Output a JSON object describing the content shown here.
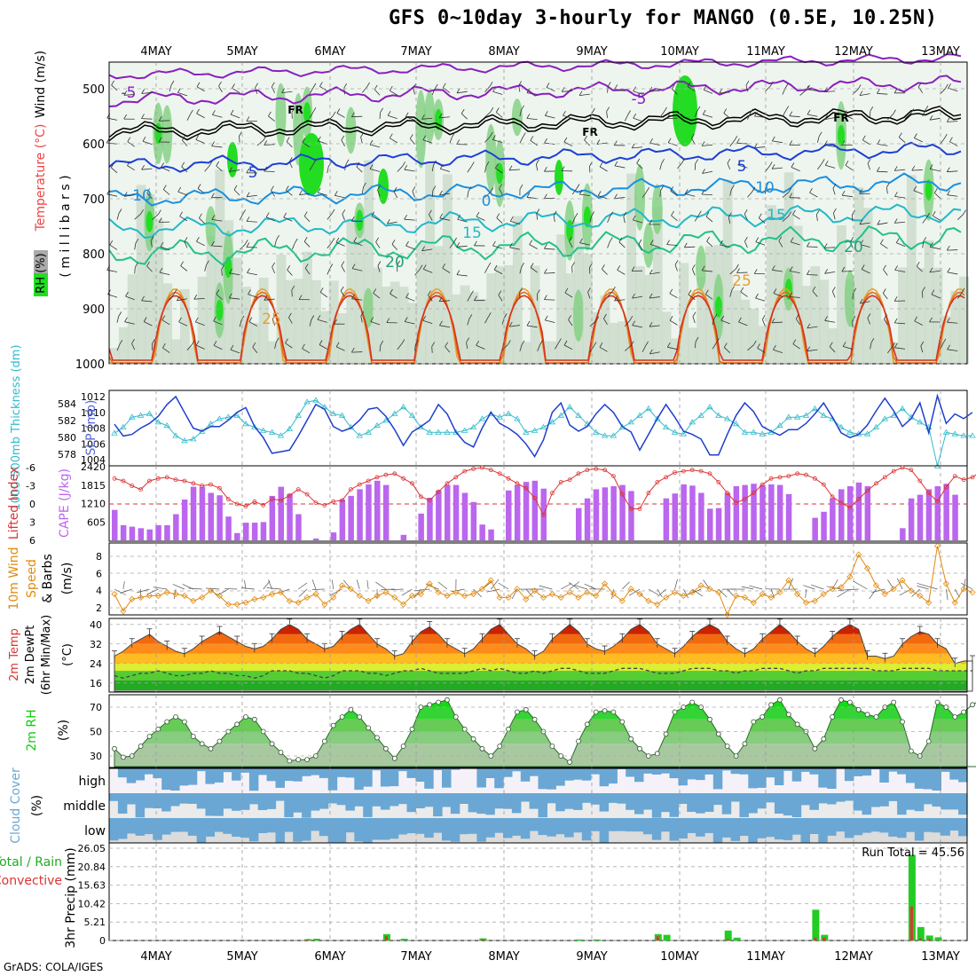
{
  "title": "GFS 0~10day 3-hourly for MANGO (0.5E, 10.25N)",
  "credit": "GrADS: COLA/IGES",
  "colors": {
    "rh_green": "#22dd22",
    "rh_light": "#c8d8c8",
    "slp": "#1f3fcc",
    "thickness": "#33bbcc",
    "cape": "#bb66ee",
    "lifted": "#dd3333",
    "wind10": "#e08a10",
    "rh2m": "#11cc11",
    "cloud": "#6aa7d4",
    "precip_total": "#22cc22",
    "precip_conv": "#dd3333"
  },
  "chart_data": [
    {
      "type": "contour",
      "panel": "upper-air",
      "ylabel_segments": [
        "RH (%)",
        "Temperature (°C)",
        "Wind (m/s)"
      ],
      "ylabel2": "( m i l l i b a r s )",
      "x_labels": [
        "4MAY",
        "5MAY",
        "6MAY",
        "7MAY",
        "8MAY",
        "9MAY",
        "10MAY",
        "11MAY",
        "12MAY",
        "13MAY"
      ],
      "y_ticks": [
        "500",
        "600",
        "700",
        "800",
        "900",
        "1000"
      ],
      "isotherm_labels": [
        "-5",
        "-5",
        "FR",
        "FR",
        "FR",
        "5",
        "5",
        "10",
        "10",
        "0",
        "15",
        "15",
        "20",
        "20",
        "25",
        "25"
      ],
      "isotherms_C": [
        -5,
        0,
        5,
        10,
        15,
        20,
        25
      ]
    },
    {
      "type": "line",
      "panel": "slp-thickness",
      "ylabel_left": "1000-500mb Thickness (dm)",
      "ylabel_right": "SLP (mb)",
      "y_ticks_left": [
        "584",
        "582",
        "580",
        "578"
      ],
      "y_ticks_right": [
        "1012",
        "1010",
        "1008",
        "1006",
        "1004"
      ],
      "series": [
        {
          "name": "SLP",
          "values": [
            1008.5,
            1007,
            1007.2,
            1008,
            1008.6,
            1009.5,
            1011,
            1012,
            1010,
            1008,
            1007.6,
            1008.2,
            1008.2,
            1009,
            1010,
            1010.6,
            1008.2,
            1006.8,
            1004.8,
            1005,
            1005.2,
            1007,
            1009,
            1011,
            1010.4,
            1008.2,
            1007.6,
            1008,
            1009,
            1010.4,
            1010.6,
            1009.5,
            1007.8,
            1005.8,
            1007.5,
            1008.2,
            1009,
            1011,
            1009.8,
            1007.5,
            1006.2,
            1005.6,
            1008,
            1010,
            1008.6,
            1008,
            1007.2,
            1006,
            1004.4,
            1006.5,
            1010,
            1011.2,
            1008.4,
            1007.6,
            1008.2,
            1009.8,
            1011,
            1010,
            1008.2,
            1007.5,
            1005.2,
            1007.2,
            1009.2,
            1011,
            1009.4,
            1007.6,
            1007.2,
            1006.6,
            1004.6,
            1004.6,
            1007.2,
            1009.6,
            1011.2,
            1010.1,
            1008.2,
            1007.6,
            1007.1,
            1007.8,
            1007.8,
            1008.6,
            1009.8,
            1011.2,
            1009.4,
            1007.4,
            1006.8,
            1007.2,
            1008.4,
            1010.2,
            1011.8,
            1010.2,
            1008.2,
            1009.2,
            1011.2,
            1007.4,
            1012.1,
            1008.6,
            1009.8,
            1009.2,
            1010
          ]
        },
        {
          "name": "Thickness",
          "values": [
            580.5,
            581.2,
            582.4,
            582.6,
            582.8,
            581.8,
            581.4,
            580.2,
            579.6,
            579.8,
            580.7,
            581.6,
            582.2,
            582.4,
            582.6,
            581.6,
            581.2,
            580.8,
            580.6,
            580.2,
            581,
            582.6,
            584.2,
            584.4,
            583.6,
            582.8,
            582.6,
            581.2,
            580.2,
            580.6,
            581.4,
            582,
            582.8,
            583.6,
            582.6,
            581.2,
            580.6,
            580.6,
            580.6,
            580.6,
            580.8,
            581.2,
            582.2,
            582.8,
            582.4,
            582.8,
            582.2,
            580.6,
            580.8,
            581.2,
            581.8,
            582.6,
            583.6,
            582.6,
            581.6,
            580.6,
            580.2,
            580.2,
            581.2,
            581.8,
            582.6,
            583.4,
            582.2,
            581.2,
            580.6,
            580.4,
            581.8,
            582.6,
            583.6,
            582.6,
            582.2,
            581.6,
            580.6,
            580.6,
            580.4,
            580.6,
            581.4,
            582.4,
            582.4,
            582.6,
            583.4,
            582.6,
            582.2,
            581.2,
            580.6,
            580.4,
            580.4,
            581.2,
            582.2,
            582.6,
            583.4,
            582.4,
            581.8,
            581.2,
            576.6,
            580.6,
            580.4,
            580.2,
            580.2
          ]
        }
      ]
    },
    {
      "type": "bar",
      "panel": "cape-lifted-index",
      "ylabel_left": "Lifted Index",
      "ylabel_right": "CAPE (J/kg)",
      "y_ticks_left": [
        "-6",
        "-3",
        "0",
        "3",
        "6"
      ],
      "y_ticks_right": [
        "2420",
        "1815",
        "1210",
        "605"
      ],
      "series": [
        {
          "name": "CAPE",
          "values": [
            1000,
            500,
            450,
            400,
            360,
            500,
            500,
            860,
            1340,
            1760,
            1760,
            1560,
            1480,
            780,
            240,
            580,
            580,
            600,
            1460,
            1760,
            1520,
            860,
            0,
            60,
            0,
            260,
            1340,
            1460,
            1680,
            1840,
            1960,
            1820,
            0,
            180,
            0,
            880,
            1400,
            1640,
            1820,
            1820,
            1560,
            1260,
            520,
            360,
            0,
            1640,
            1820,
            1920,
            1960,
            1700,
            0,
            0,
            0,
            1060,
            1380,
            1680,
            1740,
            1780,
            1820,
            1620,
            0,
            0,
            0,
            1380,
            1540,
            1840,
            1800,
            1560,
            1040,
            1060,
            1560,
            1780,
            1820,
            1860,
            1820,
            1840,
            1820,
            1520,
            0,
            0,
            740,
            940,
            1380,
            1680,
            1780,
            1900,
            1780,
            0,
            0,
            0,
            400,
            1380,
            1500,
            1680,
            1780,
            1860,
            1500,
            0,
            0,
            0,
            130,
            180
          ]
        },
        {
          "name": "Lifted Index",
          "values": [
            -4.2,
            -3.8,
            -3,
            -2.4,
            -3.8,
            -4.2,
            -4.4,
            -4,
            -3.8,
            -3.4,
            -3,
            -3.2,
            -2.6,
            -0.8,
            0,
            0.4,
            -0.4,
            0.2,
            -0.8,
            -0.6,
            -1.4,
            -2.4,
            -1.6,
            -0.2,
            0.2,
            -0.4,
            -0.6,
            -2.4,
            -3.2,
            -3.8,
            -4.4,
            -4.8,
            -5,
            -4.2,
            -3.4,
            -1.2,
            -0.6,
            -2,
            -3.4,
            -4.4,
            -5.4,
            -5.8,
            -6,
            -5.6,
            -5,
            -4.2,
            -3.4,
            -2.6,
            -1,
            1.8,
            -1.8,
            -3.6,
            -4,
            -5,
            -5.6,
            -5.8,
            -5.6,
            -4.6,
            -1.6,
            0.8,
            0.8,
            -1.8,
            -3.6,
            -4.4,
            -5.2,
            -5.4,
            -5.6,
            -5.4,
            -5,
            -3.6,
            -1.8,
            -0.2,
            -0.8,
            -1.8,
            -3.2,
            -4.2,
            -4.4,
            -4.6,
            -5,
            -4.8,
            -4.2,
            -3.2,
            -1.2,
            -0.2,
            0.6,
            -0.8,
            -2.2,
            -3.4,
            -4.4,
            -5.4,
            -6,
            -5.6,
            -3.8,
            -1.8,
            -0.4,
            -2.8,
            -4.6,
            -4,
            -4.4,
            -5.4,
            -5.8,
            -5.4,
            -4.2,
            -3.2,
            -0.4,
            1.6,
            0.6,
            -2.2
          ]
        }
      ]
    },
    {
      "type": "line",
      "panel": "10m-wind",
      "ylabel": "10m Wind Speed & Barbs (m/s)",
      "y_ticks": [
        "8",
        "6",
        "4",
        "2"
      ],
      "series": [
        {
          "name": "Speed",
          "values": [
            3.6,
            1.6,
            3,
            3.2,
            3.4,
            3.4,
            3.8,
            3.6,
            3.4,
            2.8,
            3.2,
            4,
            3.4,
            2.4,
            2.4,
            2.6,
            3,
            3.2,
            3.6,
            3.8,
            2.8,
            2.6,
            3.2,
            3.6,
            2.4,
            3.2,
            4.6,
            4.2,
            3.4,
            2.8,
            3.4,
            3.8,
            3.2,
            2.4,
            3.4,
            3.6,
            4.8,
            3.8,
            3.4,
            3.8,
            3.4,
            3.6,
            4.2,
            5.2,
            3.2,
            3.2,
            4.2,
            3,
            4,
            3.2,
            3.6,
            3.2,
            3.8,
            3.2,
            3.8,
            3.4,
            4.8,
            3.6,
            2.8,
            4.2,
            3.6,
            2.8,
            2.4,
            3.2,
            3.8,
            3.4,
            3.8,
            4.6,
            4.2,
            3.8,
            1.2,
            3.4,
            3.2,
            2.6,
            3.6,
            3.2,
            3.8,
            5.2,
            3.6,
            2.6,
            2.8,
            3.6,
            4.2,
            4.4,
            5.6,
            8.2,
            6.6,
            4.6,
            3.6,
            4.2,
            5.2,
            4,
            3.4,
            2.6,
            9.2,
            4.8,
            2.6,
            4.2,
            3.8
          ]
        }
      ]
    },
    {
      "type": "area",
      "panel": "2m-temp",
      "ylabel": "2m Temp 2m DewPt (6hr Min/Max) (°C)",
      "y_ticks": [
        "40",
        "32",
        "24",
        "16"
      ],
      "series": [
        {
          "name": "Temp",
          "values": [
            27,
            29,
            32,
            34,
            36,
            33,
            31,
            29,
            28,
            30,
            33,
            35,
            37,
            35,
            33,
            31,
            30,
            31,
            34,
            38,
            40,
            38,
            34,
            32,
            30,
            31,
            35,
            38,
            40,
            36,
            32,
            30,
            27,
            28,
            33,
            37,
            39,
            36,
            32,
            30,
            28,
            30,
            34,
            38,
            40,
            36,
            32,
            30,
            27,
            29,
            34,
            37,
            40,
            37,
            32,
            30,
            29,
            31,
            34,
            38,
            40,
            37,
            32,
            30,
            28,
            31,
            35,
            38,
            40,
            38,
            33,
            30,
            28,
            30,
            34,
            37,
            40,
            37,
            33,
            30,
            28,
            31,
            35,
            38,
            40,
            38,
            27,
            27,
            26,
            27,
            32,
            35,
            37,
            36,
            32,
            30,
            24,
            25,
            25
          ]
        },
        {
          "name": "DewPt",
          "values": [
            19,
            18,
            19,
            20,
            20,
            21,
            20,
            19,
            19,
            20,
            20,
            21,
            20,
            20,
            19,
            19,
            18,
            19,
            21,
            21,
            21,
            20,
            20,
            19,
            18,
            19,
            21,
            21,
            21,
            20,
            20,
            19,
            20,
            21,
            21,
            22,
            21,
            20,
            20,
            20,
            20,
            21,
            22,
            21,
            22,
            21,
            20,
            20,
            21,
            20,
            21,
            22,
            22,
            21,
            20,
            20,
            20,
            21,
            22,
            22,
            22,
            21,
            20,
            20,
            20,
            21,
            22,
            22,
            22,
            21,
            21,
            20,
            21,
            21,
            22,
            22,
            22,
            21,
            20,
            21,
            21,
            22,
            22,
            22,
            22,
            22,
            22,
            21,
            21,
            21,
            22,
            22,
            22,
            22,
            21,
            21,
            21,
            21,
            21
          ]
        }
      ]
    },
    {
      "type": "area",
      "panel": "2m-rh",
      "ylabel": "2m RH (%)",
      "y_ticks": [
        "70",
        "50",
        "30"
      ],
      "series": [
        {
          "name": "RH",
          "values": [
            36,
            29,
            30,
            38,
            46,
            52,
            58,
            62,
            58,
            46,
            40,
            36,
            42,
            50,
            56,
            62,
            60,
            50,
            40,
            33,
            26,
            27,
            27,
            30,
            42,
            55,
            62,
            68,
            62,
            53,
            45,
            36,
            28,
            38,
            52,
            70,
            72,
            74,
            76,
            62,
            52,
            44,
            36,
            30,
            38,
            52,
            66,
            68,
            60,
            50,
            38,
            30,
            25,
            42,
            56,
            66,
            67,
            66,
            58,
            44,
            36,
            30,
            32,
            48,
            66,
            70,
            74,
            70,
            60,
            48,
            38,
            30,
            40,
            58,
            62,
            72,
            76,
            64,
            56,
            50,
            36,
            44,
            62,
            76,
            74,
            68,
            64,
            62,
            70,
            74,
            58,
            34,
            30,
            42,
            74,
            70,
            62,
            66,
            72,
            76
          ]
        }
      ]
    },
    {
      "type": "bar",
      "panel": "cloud-cover",
      "ylabel": "Cloud Cover (%)",
      "y_ticks": [
        "high",
        "middle",
        "low"
      ]
    },
    {
      "type": "bar",
      "panel": "precip",
      "ylabel": "3hr Precip (mm)",
      "ylabel_left": [
        "Total / Rain",
        "Convective"
      ],
      "annotation": "Run Total = 45.56",
      "y_ticks": [
        "26.05",
        "20.84",
        "15.63",
        "10.42",
        "5.21",
        "0"
      ],
      "series": [
        {
          "name": "Total",
          "points": [
            [
              22,
              0.4
            ],
            [
              23,
              0.5
            ],
            [
              31,
              1.8
            ],
            [
              33,
              0.5
            ],
            [
              42,
              0.6
            ],
            [
              53,
              0.3
            ],
            [
              55,
              0.3
            ],
            [
              62,
              1.8
            ],
            [
              63,
              1.6
            ],
            [
              70,
              2.8
            ],
            [
              71,
              0.8
            ],
            [
              80,
              8.7
            ],
            [
              81,
              1.6
            ],
            [
              91,
              24.2
            ],
            [
              92,
              3.8
            ],
            [
              93,
              1.4
            ],
            [
              94,
              0.9
            ]
          ]
        },
        {
          "name": "Convective",
          "points": [
            [
              22,
              0.3
            ],
            [
              31,
              1.2
            ],
            [
              42,
              0.4
            ],
            [
              62,
              1.2
            ],
            [
              70,
              0.4
            ],
            [
              80,
              0.8
            ],
            [
              81,
              0.8
            ],
            [
              91,
              9.6
            ],
            [
              92,
              0.6
            ],
            [
              93,
              0.4
            ]
          ]
        }
      ]
    }
  ]
}
